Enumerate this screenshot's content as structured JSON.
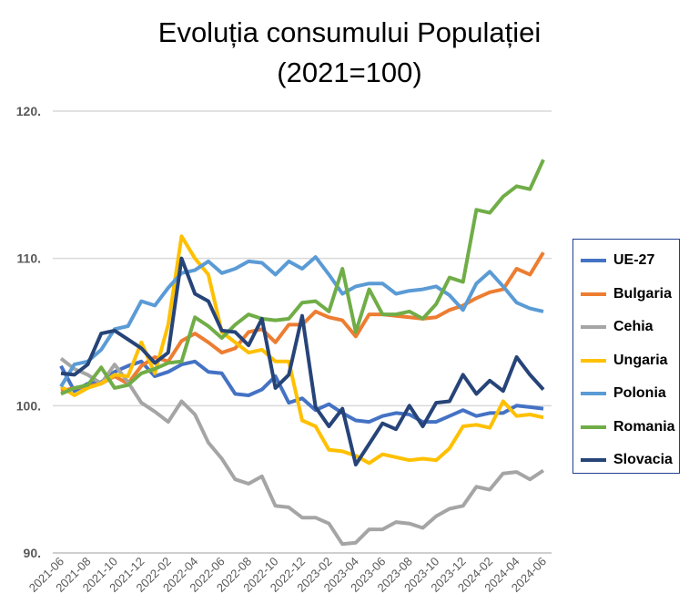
{
  "chart_data": {
    "type": "line",
    "title": "Evoluția consumului Populației",
    "subtitle": "(2021=100)",
    "xlabel": "",
    "ylabel": "",
    "ylim": [
      90,
      120
    ],
    "yticks": [
      90,
      100,
      110,
      120
    ],
    "ytick_labels": [
      "90.",
      "100.",
      "110.",
      "120."
    ],
    "grid": true,
    "legend_position": "right",
    "x": [
      "2021-06",
      "2021-07",
      "2021-08",
      "2021-09",
      "2021-10",
      "2021-11",
      "2021-12",
      "2022-01",
      "2022-02",
      "2022-03",
      "2022-04",
      "2022-05",
      "2022-06",
      "2022-07",
      "2022-08",
      "2022-09",
      "2022-10",
      "2022-11",
      "2022-12",
      "2023-01",
      "2023-02",
      "2023-03",
      "2023-04",
      "2023-05",
      "2023-06",
      "2023-07",
      "2023-08",
      "2023-09",
      "2023-10",
      "2023-11",
      "2023-12",
      "2024-01",
      "2024-02",
      "2024-03",
      "2024-04",
      "2024-05",
      "2024-06"
    ],
    "xtick_labels": [
      "2021-06",
      "2021-08",
      "2021-10",
      "2021-12",
      "2022-02",
      "2022-04",
      "2022-06",
      "2022-08",
      "2022-10",
      "2022-12",
      "2023-02",
      "2023-04",
      "2023-06",
      "2023-08",
      "2023-10",
      "2023-12",
      "2024-02",
      "2024-04",
      "2024-06"
    ],
    "series": [
      {
        "name": "UE-27",
        "color": "#4472C4",
        "values": [
          102.7,
          101.0,
          101.5,
          101.6,
          102.3,
          102.7,
          103.0,
          102.0,
          102.3,
          102.8,
          103.0,
          102.3,
          102.2,
          100.8,
          100.7,
          101.1,
          102.0,
          100.2,
          100.5,
          99.7,
          100.1,
          99.5,
          99.0,
          98.9,
          99.3,
          99.5,
          99.4,
          98.9,
          98.9,
          99.3,
          99.7,
          99.3,
          99.5,
          99.5,
          100.0,
          99.9,
          99.8
        ]
      },
      {
        "name": "Bulgaria",
        "color": "#ED7D31",
        "values": [
          101.0,
          101.2,
          101.3,
          101.5,
          102.0,
          101.5,
          102.7,
          103.3,
          103.0,
          104.4,
          104.9,
          104.3,
          103.6,
          103.9,
          105.0,
          105.2,
          104.3,
          105.5,
          105.5,
          106.4,
          106.0,
          105.8,
          104.7,
          106.2,
          106.2,
          106.1,
          106.0,
          105.9,
          106.0,
          106.5,
          106.8,
          107.3,
          107.7,
          107.9,
          109.3,
          108.9,
          110.4
        ]
      },
      {
        "name": "Cehia",
        "color": "#A5A5A5",
        "values": [
          103.2,
          102.5,
          102.1,
          101.5,
          102.8,
          101.6,
          100.2,
          99.6,
          98.9,
          100.3,
          99.4,
          97.5,
          96.4,
          95.0,
          94.7,
          95.2,
          93.2,
          93.1,
          92.4,
          92.4,
          92.0,
          90.6,
          90.7,
          91.6,
          91.6,
          92.1,
          92.0,
          91.7,
          92.5,
          93.0,
          93.2,
          94.5,
          94.3,
          95.4,
          95.5,
          95.0,
          95.6
        ]
      },
      {
        "name": "Ungaria",
        "color": "#FFC000",
        "values": [
          101.3,
          100.7,
          101.2,
          101.5,
          102.1,
          102.0,
          104.3,
          102.2,
          105.5,
          111.5,
          110.0,
          108.9,
          105.0,
          104.3,
          103.6,
          103.8,
          103.0,
          103.0,
          99.0,
          98.6,
          97.0,
          96.9,
          96.6,
          96.1,
          96.7,
          96.5,
          96.3,
          96.4,
          96.3,
          97.1,
          98.6,
          98.7,
          98.5,
          100.3,
          99.3,
          99.4,
          99.2
        ]
      },
      {
        "name": "Polonia",
        "color": "#5B9BD5",
        "values": [
          101.3,
          102.8,
          103.0,
          103.8,
          105.2,
          105.4,
          107.1,
          106.8,
          108.0,
          109.0,
          109.2,
          109.8,
          109.0,
          109.3,
          109.8,
          109.7,
          108.9,
          109.8,
          109.3,
          110.1,
          108.9,
          107.6,
          108.1,
          108.3,
          108.3,
          107.6,
          107.8,
          107.9,
          108.1,
          107.5,
          106.5,
          108.3,
          109.1,
          108.1,
          107.0,
          106.6,
          106.4
        ]
      },
      {
        "name": "Romania",
        "color": "#70AD47",
        "values": [
          100.8,
          101.2,
          101.4,
          102.6,
          101.2,
          101.4,
          102.2,
          102.5,
          102.9,
          103.0,
          106.0,
          105.4,
          104.6,
          105.5,
          106.2,
          105.9,
          105.8,
          105.9,
          107.0,
          107.1,
          106.4,
          109.3,
          105.0,
          107.9,
          106.2,
          106.2,
          106.4,
          105.9,
          106.9,
          108.7,
          108.4,
          113.3,
          113.1,
          114.2,
          114.9,
          114.7,
          116.7
        ]
      },
      {
        "name": "Slovacia",
        "color": "#264478",
        "values": [
          102.2,
          102.1,
          102.8,
          104.9,
          105.1,
          104.5,
          103.9,
          102.9,
          103.6,
          110.0,
          107.6,
          107.1,
          105.1,
          105.0,
          104.1,
          105.9,
          101.2,
          102.1,
          106.1,
          99.9,
          98.6,
          99.8,
          96.0,
          97.4,
          98.8,
          98.4,
          100.0,
          98.6,
          100.2,
          100.3,
          102.1,
          100.8,
          101.7,
          101.0,
          103.3,
          102.1,
          101.1
        ]
      }
    ]
  }
}
